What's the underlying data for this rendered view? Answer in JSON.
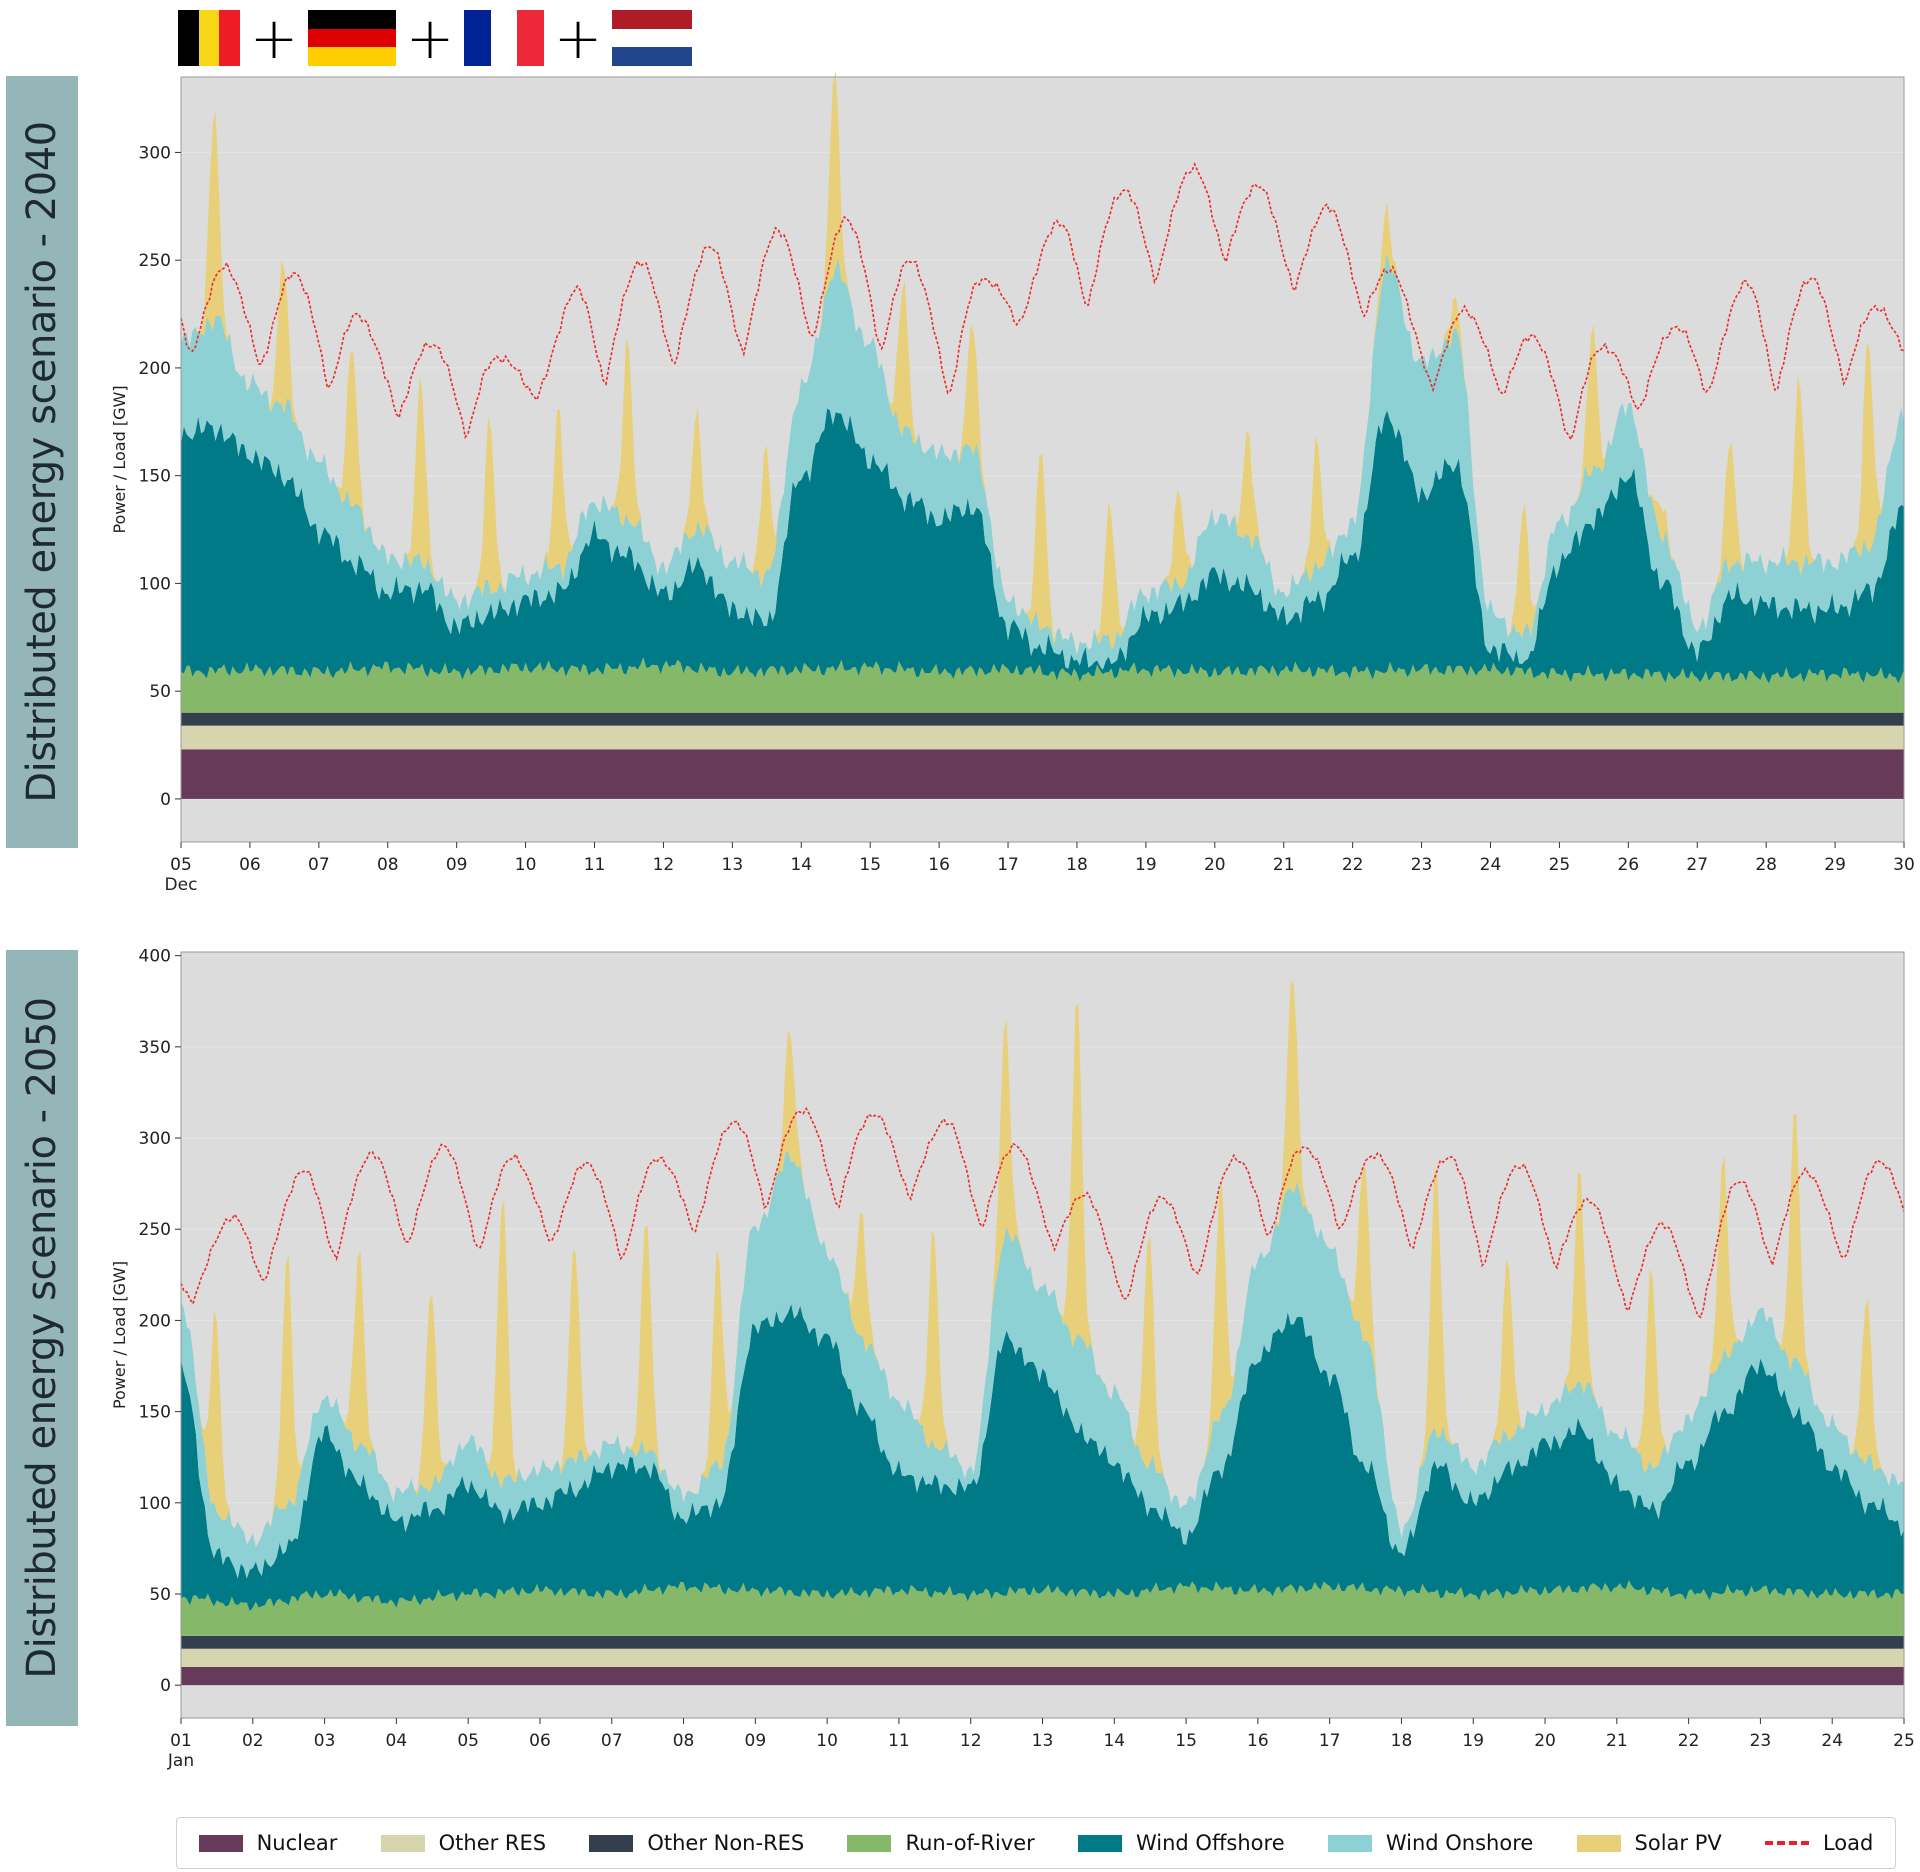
{
  "flags": {
    "items": [
      {
        "name": "belgium",
        "orientation": "v",
        "colors": [
          "#000000",
          "#f9d616",
          "#ee1c25"
        ]
      },
      {
        "name": "germany",
        "orientation": "h",
        "colors": [
          "#000000",
          "#dd0000",
          "#ffce00"
        ]
      },
      {
        "name": "france",
        "orientation": "v",
        "colors": [
          "#002395",
          "#ffffff",
          "#ed2939"
        ]
      },
      {
        "name": "netherlands",
        "orientation": "h",
        "colors": [
          "#ae1c28",
          "#ffffff",
          "#21468b"
        ]
      }
    ],
    "plus": "+"
  },
  "colors": {
    "Nuclear": "#673a59",
    "Other RES": "#d6d5ae",
    "Other Non-RES": "#343f4d",
    "Run-of-River": "#86b86a",
    "Wind Offshore": "#007a86",
    "Wind Onshore": "#8dd1d4",
    "Solar PV": "#e8cf7a",
    "Load": "#ee2a2a",
    "plot_bg": "#dcdcdc"
  },
  "chart_data": [
    {
      "type": "area",
      "stacked": true,
      "side_label": "Distributed energy scenario - 2040",
      "ylabel": "Power / Load [GW]",
      "ylim": [
        -20,
        335
      ],
      "yticks": [
        0,
        50,
        100,
        150,
        200,
        250,
        300
      ],
      "xticks": [
        "05\nDec",
        "06",
        "07",
        "08",
        "09",
        "10",
        "11",
        "12",
        "13",
        "14",
        "15",
        "16",
        "17",
        "18",
        "19",
        "20",
        "21",
        "22",
        "23",
        "24",
        "25",
        "26",
        "27",
        "28",
        "29",
        "30"
      ],
      "x_start": "2040-12-05",
      "x_end": "2040-12-30",
      "grid": true,
      "series": [
        {
          "name": "Nuclear",
          "kind": "band",
          "from": 0,
          "to": 23
        },
        {
          "name": "Other RES",
          "kind": "band",
          "from": 23,
          "to": 34
        },
        {
          "name": "Other Non-RES",
          "kind": "band",
          "from": 34,
          "to": 40
        },
        {
          "name": "Run-of-River",
          "kind": "profile",
          "x": [
            5,
            6,
            7,
            8,
            9,
            10,
            11,
            12,
            13,
            14,
            15,
            16,
            17,
            18,
            19,
            20,
            21,
            22,
            23,
            24,
            25,
            26,
            27,
            28,
            29,
            30
          ],
          "values": [
            59,
            60,
            59,
            61,
            59,
            61,
            60,
            62,
            59,
            60,
            61,
            59,
            60,
            58,
            60,
            59,
            60,
            59,
            60,
            60,
            58,
            58,
            57,
            57,
            58,
            57
          ]
        },
        {
          "name": "Wind Offshore",
          "kind": "profile",
          "x": [
            5,
            5.5,
            6,
            6.5,
            7,
            7.5,
            8,
            8.5,
            9,
            9.5,
            10,
            10.5,
            11,
            11.5,
            12,
            12.5,
            13,
            13.5,
            14,
            14.5,
            15,
            15.5,
            16,
            16.5,
            17,
            17.5,
            18,
            18.5,
            19,
            19.5,
            20,
            20.5,
            21,
            21.5,
            22,
            22.5,
            23,
            23.5,
            24,
            24.5,
            25,
            25.5,
            26,
            26.5,
            27,
            27.5,
            28,
            28.5,
            29,
            29.5,
            30
          ],
          "values": [
            170,
            172,
            160,
            150,
            125,
            110,
            96,
            98,
            80,
            86,
            92,
            96,
            122,
            112,
            95,
            108,
            88,
            82,
            150,
            180,
            158,
            140,
            130,
            136,
            80,
            70,
            64,
            62,
            84,
            90,
            104,
            98,
            84,
            92,
            112,
            178,
            142,
            156,
            70,
            64,
            110,
            130,
            150,
            100,
            68,
            94,
            90,
            88,
            88,
            96,
            134
          ]
        },
        {
          "name": "Wind Onshore",
          "kind": "profile",
          "x": [
            5,
            5.5,
            6,
            6.5,
            7,
            7.5,
            8,
            8.5,
            9,
            9.5,
            10,
            10.5,
            11,
            11.5,
            12,
            12.5,
            13,
            13.5,
            14,
            14.5,
            15,
            15.5,
            16,
            16.5,
            17,
            17.5,
            18,
            18.5,
            19,
            19.5,
            20,
            20.5,
            21,
            21.5,
            22,
            22.5,
            23,
            23.5,
            24,
            24.5,
            25,
            25.5,
            26,
            26.5,
            27,
            27.5,
            28,
            28.5,
            29,
            29.5,
            30
          ],
          "values": [
            212,
            222,
            192,
            182,
            156,
            136,
            112,
            110,
            92,
            98,
            104,
            108,
            138,
            130,
            108,
            126,
            110,
            104,
            190,
            245,
            210,
            170,
            160,
            162,
            92,
            80,
            72,
            74,
            96,
            100,
            132,
            122,
            96,
            108,
            128,
            248,
            202,
            215,
            86,
            76,
            128,
            152,
            182,
            122,
            80,
            110,
            110,
            110,
            110,
            118,
            180
          ]
        },
        {
          "name": "Solar PV",
          "kind": "peaks",
          "hour": 11.5,
          "halfwidth": 2.6,
          "x": [
            5,
            6,
            7,
            8,
            9,
            10,
            11,
            12,
            13,
            14,
            15,
            16,
            17,
            18,
            19,
            20,
            21,
            22,
            23,
            24,
            25,
            26,
            27,
            28,
            29
          ],
          "values": [
            100,
            70,
            75,
            85,
            80,
            75,
            85,
            55,
            60,
            95,
            70,
            60,
            85,
            65,
            45,
            50,
            60,
            25,
            15,
            60,
            68,
            15,
            60,
            90,
            100
          ]
        },
        {
          "name": "Load",
          "kind": "line",
          "x": [
            5,
            6,
            7,
            8,
            9,
            10,
            11,
            12,
            13,
            14,
            15,
            16,
            17,
            18,
            19,
            20,
            21,
            22,
            23,
            24,
            25,
            26,
            27,
            28,
            29,
            30
          ],
          "peaks": [
            250,
            245,
            243,
            215,
            210,
            203,
            245,
            250,
            258,
            265,
            270,
            240,
            242,
            275,
            285,
            295,
            280,
            272,
            230,
            225,
            210,
            210,
            222,
            245,
            240,
            222
          ],
          "troughs": [
            205,
            200,
            190,
            178,
            168,
            186,
            192,
            200,
            205,
            212,
            208,
            185,
            220,
            228,
            240,
            250,
            236,
            225,
            190,
            188,
            165,
            180,
            188,
            188,
            192,
            200
          ]
        }
      ]
    },
    {
      "type": "area",
      "stacked": true,
      "side_label": "Distributed energy scenario - 2050",
      "ylabel": "Power / Load [GW]",
      "ylim": [
        -18,
        402
      ],
      "yticks": [
        0,
        50,
        100,
        150,
        200,
        250,
        300,
        350,
        400
      ],
      "xticks": [
        "01\nJan",
        "02",
        "03",
        "04",
        "05",
        "06",
        "07",
        "08",
        "09",
        "10",
        "11",
        "12",
        "13",
        "14",
        "15",
        "16",
        "17",
        "18",
        "19",
        "20",
        "21",
        "22",
        "23",
        "24",
        "25"
      ],
      "x_start": "2050-01-01",
      "x_end": "2050-01-25",
      "grid": true,
      "series": [
        {
          "name": "Nuclear",
          "kind": "band",
          "from": 0,
          "to": 10
        },
        {
          "name": "Other RES",
          "kind": "band",
          "from": 10,
          "to": 20
        },
        {
          "name": "Other Non-RES",
          "kind": "band",
          "from": 20,
          "to": 27
        },
        {
          "name": "Run-of-River",
          "kind": "profile",
          "x": [
            1,
            2,
            3,
            4,
            5,
            6,
            7,
            8,
            9,
            10,
            11,
            12,
            13,
            14,
            15,
            16,
            17,
            18,
            19,
            20,
            21,
            22,
            23,
            24,
            25
          ],
          "values": [
            48,
            44,
            50,
            46,
            50,
            52,
            50,
            54,
            52,
            50,
            52,
            50,
            52,
            50,
            54,
            52,
            54,
            52,
            50,
            52,
            54,
            50,
            52,
            50,
            50
          ]
        },
        {
          "name": "Wind Offshore",
          "kind": "profile",
          "x": [
            1,
            1.5,
            2,
            2.5,
            3,
            3.5,
            4,
            4.5,
            5,
            5.5,
            6,
            6.5,
            7,
            7.5,
            8,
            8.5,
            9,
            9.5,
            10,
            10.5,
            11,
            11.5,
            12,
            12.5,
            13,
            13.5,
            14,
            14.5,
            15,
            15.5,
            16,
            16.5,
            17,
            17.5,
            18,
            18.5,
            19,
            19.5,
            20,
            20.5,
            21,
            21.5,
            22,
            22.5,
            23,
            23.5,
            24,
            24.5,
            25
          ],
          "values": [
            172,
            70,
            62,
            75,
            138,
            110,
            90,
            96,
            110,
            94,
            100,
            108,
            120,
            120,
            92,
            100,
            196,
            204,
            190,
            150,
            116,
            110,
            108,
            190,
            170,
            140,
            122,
            98,
            82,
            120,
            180,
            202,
            170,
            120,
            72,
            120,
            100,
            118,
            132,
            140,
            110,
            96,
            122,
            150,
            176,
            150,
            120,
            100,
            88
          ]
        },
        {
          "name": "Wind Onshore",
          "kind": "profile",
          "x": [
            1,
            1.5,
            2,
            2.5,
            3,
            3.5,
            4,
            4.5,
            5,
            5.5,
            6,
            6.5,
            7,
            7.5,
            8,
            8.5,
            9,
            9.5,
            10,
            10.5,
            11,
            11.5,
            12,
            12.5,
            13,
            13.5,
            14,
            14.5,
            15,
            15.5,
            16,
            16.5,
            17,
            17.5,
            18,
            18.5,
            19,
            19.5,
            20,
            20.5,
            21,
            21.5,
            22,
            22.5,
            23,
            23.5,
            24,
            24.5,
            25
          ],
          "values": [
            210,
            95,
            80,
            100,
            158,
            132,
            106,
            110,
            134,
            112,
            118,
            124,
            132,
            128,
            104,
            120,
            252,
            290,
            238,
            190,
            156,
            132,
            118,
            248,
            218,
            190,
            160,
            120,
            98,
            148,
            232,
            272,
            240,
            190,
            86,
            140,
            120,
            138,
            152,
            166,
            138,
            120,
            146,
            180,
            204,
            176,
            142,
            122,
            110
          ]
        },
        {
          "name": "Solar PV",
          "kind": "peaks",
          "hour": 11.5,
          "halfwidth": 2.6,
          "x": [
            1,
            2,
            3,
            4,
            5,
            6,
            7,
            8,
            9,
            10,
            11,
            12,
            13,
            14,
            15,
            16,
            17,
            18,
            19,
            20,
            21,
            22,
            23,
            24
          ],
          "values": [
            110,
            140,
            110,
            110,
            160,
            120,
            130,
            120,
            70,
            70,
            120,
            120,
            190,
            130,
            130,
            120,
            100,
            150,
            100,
            120,
            110,
            110,
            140,
            90
          ]
        },
        {
          "name": "Load",
          "kind": "line",
          "x": [
            1,
            2,
            3,
            4,
            5,
            6,
            7,
            8,
            9,
            10,
            11,
            12,
            13,
            14,
            15,
            16,
            17,
            18,
            19,
            20,
            21,
            22,
            23,
            24,
            25
          ],
          "peaks": [
            238,
            262,
            288,
            292,
            296,
            286,
            286,
            290,
            315,
            316,
            312,
            308,
            290,
            258,
            270,
            295,
            295,
            290,
            290,
            283,
            258,
            250,
            284,
            280,
            290
          ],
          "troughs": [
            210,
            220,
            232,
            240,
            236,
            242,
            232,
            248,
            262,
            262,
            268,
            250,
            240,
            208,
            222,
            245,
            250,
            240,
            230,
            230,
            205,
            198,
            230,
            232,
            238
          ]
        }
      ]
    }
  ],
  "legend": {
    "items": [
      {
        "label": "Nuclear",
        "kind": "box"
      },
      {
        "label": "Other RES",
        "kind": "box"
      },
      {
        "label": "Other Non-RES",
        "kind": "box"
      },
      {
        "label": "Run-of-River",
        "kind": "box"
      },
      {
        "label": "Wind Offshore",
        "kind": "box"
      },
      {
        "label": "Wind Onshore",
        "kind": "box"
      },
      {
        "label": "Solar PV",
        "kind": "box"
      },
      {
        "label": "Load",
        "kind": "line"
      }
    ]
  }
}
